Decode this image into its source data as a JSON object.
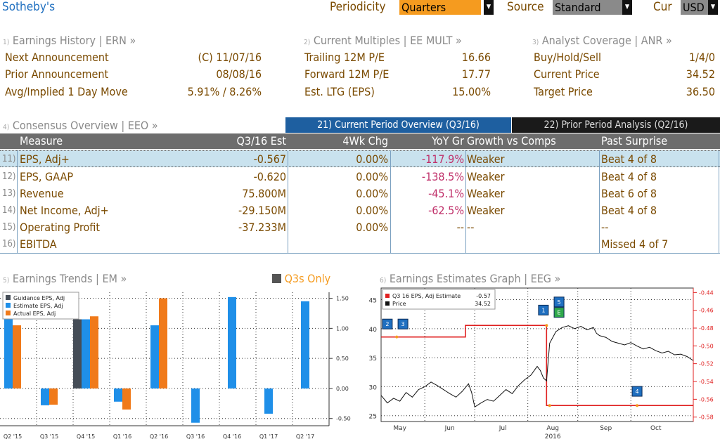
{
  "topbar": {
    "company": "Sotheby's",
    "periodicity_label": "Periodicity",
    "periodicity_value": "Quarters",
    "source_label": "Source",
    "source_value": "Standard",
    "cur_label": "Cur",
    "cur_value": "USD"
  },
  "earnings_history": {
    "num": "1)",
    "title": "Earnings History | ERN »",
    "rows": [
      {
        "label": "Next Announcement",
        "value": "(C)  11/07/16"
      },
      {
        "label": "Prior Announcement",
        "value": "08/08/16"
      },
      {
        "label": "Avg/Implied 1 Day Move",
        "value": "5.91% / 8.26%"
      }
    ]
  },
  "current_multiples": {
    "num": "2)",
    "title": "Current Multiples | EE MULT »",
    "rows": [
      {
        "label": "Trailing 12M P/E",
        "value": "16.66"
      },
      {
        "label": "Forward 12M P/E",
        "value": "17.77"
      },
      {
        "label": "Est. LTG (EPS)",
        "value": "15.00%"
      }
    ]
  },
  "analyst_coverage": {
    "num": "3)",
    "title": "Analyst Coverage | ANR »",
    "rows": [
      {
        "label": "Buy/Hold/Sell",
        "value": "1/4/0"
      },
      {
        "label": "Current Price",
        "value": "34.52"
      },
      {
        "label": "Target Price",
        "value": "36.50"
      }
    ]
  },
  "consensus": {
    "num": "4)",
    "title": "Consensus Overview | EEO »",
    "tab_current": "21) Current Period Overview (Q3/16)",
    "tab_prior": "22) Prior Period Analysis (Q2/16)",
    "headers": [
      "Measure",
      "Q3/16 Est",
      "4Wk Chg",
      "YoY Gr",
      "Growth vs Comps",
      "Past Surprise"
    ],
    "rows": [
      {
        "num": "11)",
        "measure": "EPS, Adj+",
        "est": "-0.567",
        "chg": "0.00%",
        "yoy": "-117.9%",
        "growth": "Weaker",
        "surprise": "Beat 4 of 8"
      },
      {
        "num": "12)",
        "measure": "EPS, GAAP",
        "est": "-0.620",
        "chg": "0.00%",
        "yoy": "-138.5%",
        "growth": "Weaker",
        "surprise": "Beat 4 of 8"
      },
      {
        "num": "13)",
        "measure": "Revenue",
        "est": "75.800M",
        "chg": "0.00%",
        "yoy": "-45.1%",
        "growth": "Weaker",
        "surprise": "Beat 6 of 8"
      },
      {
        "num": "14)",
        "measure": "Net Income, Adj+",
        "est": "-29.150M",
        "chg": "0.00%",
        "yoy": "-62.5%",
        "growth": "Weaker",
        "surprise": "Beat 4 of 8"
      },
      {
        "num": "15)",
        "measure": "Operating Profit",
        "est": "-37.233M",
        "chg": "0.00%",
        "yoy": "--",
        "growth": "--",
        "surprise": "--"
      },
      {
        "num": "16)",
        "measure": "EBITDA",
        "est": "",
        "chg": "",
        "yoy": "",
        "growth": "",
        "surprise": "Missed 4 of 7"
      }
    ]
  },
  "earnings_trends": {
    "num": "5)",
    "title": "Earnings Trends | EM »",
    "q3s_only": "Q3s Only"
  },
  "earnings_graph": {
    "num": "6)",
    "title": "Earnings Estimates Graph | EEG »"
  },
  "chart_data": [
    {
      "type": "bar",
      "categories": [
        "Q2 '15",
        "Q3 '15",
        "Q4 '15",
        "Q1 '16",
        "Q2 '16",
        "Q3 '16",
        "Q4 '16",
        "Q1 '17",
        "Q2 '17"
      ],
      "series": [
        {
          "name": "Guidance EPS, Adj",
          "color": "#454d57",
          "values": [
            null,
            null,
            1.15,
            null,
            null,
            null,
            null,
            null,
            null
          ]
        },
        {
          "name": "Estimate EPS, Adj",
          "color": "#1f8fe8",
          "values": [
            1.18,
            -0.28,
            1.15,
            -0.22,
            1.05,
            -0.57,
            1.52,
            -0.42,
            1.45
          ]
        },
        {
          "name": "Actual EPS, Adj",
          "color": "#f07a1a",
          "values": [
            1.05,
            -0.27,
            1.2,
            -0.35,
            1.5,
            null,
            null,
            null,
            null
          ]
        }
      ],
      "yticks": [
        "1.50",
        "1.00",
        "0.50",
        "0.00",
        "-0.50"
      ],
      "ylim": [
        -0.62,
        1.6
      ]
    },
    {
      "type": "line",
      "legend": [
        {
          "name": "Q3 16 EPS, Adj Estimate",
          "value": "-0.57",
          "color": "#e02020"
        },
        {
          "name": "Price",
          "value": "34.52",
          "color": "#111111"
        }
      ],
      "x_ticks": [
        "May",
        "Jun",
        "Jul",
        "Aug",
        "Sep",
        "Oct"
      ],
      "x_year": "2016",
      "left_ticks": [
        "45",
        "40",
        "35",
        "30",
        "25"
      ],
      "right_ticks": [
        "-0.44",
        "-0.46",
        "-0.48",
        "-0.50",
        "-0.52",
        "-0.54",
        "-0.56",
        "-0.58"
      ],
      "left_ylim": [
        24,
        47
      ],
      "right_ylim": [
        -0.585,
        -0.435
      ],
      "estimate_steps": [
        {
          "x": 0,
          "y": -0.49
        },
        {
          "x": 0.27,
          "y": -0.49
        },
        {
          "x": 0.27,
          "y": -0.477
        },
        {
          "x": 0.53,
          "y": -0.477
        },
        {
          "x": 0.53,
          "y": -0.567
        },
        {
          "x": 1,
          "y": -0.567
        }
      ],
      "price": [
        [
          0,
          28.5
        ],
        [
          0.02,
          27.2
        ],
        [
          0.04,
          28
        ],
        [
          0.06,
          27.5
        ],
        [
          0.08,
          29
        ],
        [
          0.1,
          28.2
        ],
        [
          0.12,
          29.5
        ],
        [
          0.14,
          30
        ],
        [
          0.16,
          30.8
        ],
        [
          0.18,
          30.2
        ],
        [
          0.2,
          29.5
        ],
        [
          0.22,
          28.8
        ],
        [
          0.24,
          28.2
        ],
        [
          0.26,
          29.2
        ],
        [
          0.28,
          30.5
        ],
        [
          0.29,
          29
        ],
        [
          0.3,
          26.5
        ],
        [
          0.32,
          27.2
        ],
        [
          0.34,
          27.8
        ],
        [
          0.36,
          27.5
        ],
        [
          0.38,
          28.5
        ],
        [
          0.4,
          29.5
        ],
        [
          0.42,
          28.8
        ],
        [
          0.44,
          30.2
        ],
        [
          0.46,
          31.2
        ],
        [
          0.48,
          32
        ],
        [
          0.5,
          33.5
        ],
        [
          0.51,
          32.8
        ],
        [
          0.52,
          31.5
        ],
        [
          0.53,
          31
        ],
        [
          0.54,
          37.5
        ],
        [
          0.56,
          39.5
        ],
        [
          0.58,
          40.2
        ],
        [
          0.6,
          40.5
        ],
        [
          0.62,
          40
        ],
        [
          0.64,
          40.4
        ],
        [
          0.66,
          39.8
        ],
        [
          0.68,
          40.2
        ],
        [
          0.69,
          39.2
        ],
        [
          0.7,
          38.8
        ],
        [
          0.72,
          38.5
        ],
        [
          0.74,
          37.8
        ],
        [
          0.76,
          37.5
        ],
        [
          0.78,
          37.2
        ],
        [
          0.8,
          37.6
        ],
        [
          0.82,
          37
        ],
        [
          0.84,
          36.5
        ],
        [
          0.86,
          36.8
        ],
        [
          0.88,
          36.2
        ],
        [
          0.9,
          35.8
        ],
        [
          0.92,
          36.1
        ],
        [
          0.94,
          35.5
        ],
        [
          0.96,
          35.6
        ],
        [
          0.98,
          35.2
        ],
        [
          1,
          34.5
        ]
      ],
      "markers": [
        {
          "label": "2",
          "x": 0.02,
          "y": 40.8
        },
        {
          "label": "3",
          "x": 0.07,
          "y": 40.8
        },
        {
          "label": "1",
          "x": 0.52,
          "y": 43.2
        },
        {
          "label": "5",
          "x": 0.57,
          "y": 44.6
        },
        {
          "label": "E",
          "x": 0.57,
          "y": 42.8
        },
        {
          "label": "4",
          "x": 0.82,
          "y": 29.2
        }
      ]
    }
  ]
}
